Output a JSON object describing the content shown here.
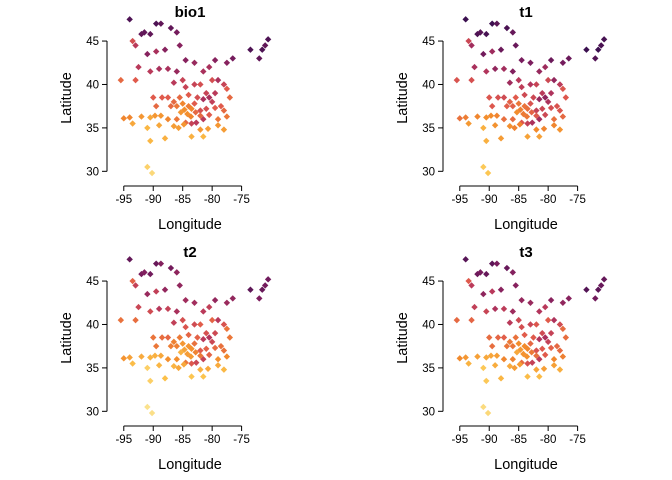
{
  "chart_data": [
    {
      "type": "scatter",
      "title": "bio1",
      "xlabel": "Longitude",
      "ylabel": "Latitude",
      "xlim": [
        -97,
        -69.5
      ],
      "ylim": [
        29,
        48
      ],
      "xticks": [
        -95,
        -90,
        -85,
        -80,
        -75
      ],
      "yticks": [
        30,
        35,
        40,
        45
      ],
      "tick_labels_x": [
        "-95",
        "-90",
        "-85",
        "-80",
        "-75"
      ],
      "tick_labels_y": [
        "30",
        "35",
        "40",
        "45"
      ],
      "marker": "diamond",
      "color_scale": [
        "#3b0f4f",
        "#7b1d5e",
        "#b5365c",
        "#e05a4c",
        "#f28b2c",
        "#fcc24a",
        "#fbe89b"
      ],
      "points": [
        {
          "x": -95.5,
          "y": 40.5,
          "v": 0.55
        },
        {
          "x": -94,
          "y": 47.5,
          "v": 0.05
        },
        {
          "x": -93.5,
          "y": 45,
          "v": 0.45
        },
        {
          "x": -93,
          "y": 44.5,
          "v": 0.35
        },
        {
          "x": -92,
          "y": 45.8,
          "v": 0.1
        },
        {
          "x": -91.5,
          "y": 46,
          "v": 0.1
        },
        {
          "x": -90.5,
          "y": 45.8,
          "v": 0.1
        },
        {
          "x": -89.5,
          "y": 47,
          "v": 0.05
        },
        {
          "x": -88.7,
          "y": 47,
          "v": 0.1
        },
        {
          "x": -87,
          "y": 46.5,
          "v": 0.1
        },
        {
          "x": -86,
          "y": 46,
          "v": 0.15
        },
        {
          "x": -85.5,
          "y": 44.5,
          "v": 0.2
        },
        {
          "x": -91,
          "y": 43.5,
          "v": 0.2
        },
        {
          "x": -89.5,
          "y": 43.8,
          "v": 0.3
        },
        {
          "x": -88,
          "y": 44,
          "v": 0.2
        },
        {
          "x": -92.5,
          "y": 42,
          "v": 0.35
        },
        {
          "x": -90.5,
          "y": 41.5,
          "v": 0.35
        },
        {
          "x": -89,
          "y": 41.8,
          "v": 0.3
        },
        {
          "x": -93,
          "y": 40.5,
          "v": 0.5
        },
        {
          "x": -87.5,
          "y": 41.8,
          "v": 0.3
        },
        {
          "x": -86,
          "y": 41.5,
          "v": 0.25
        },
        {
          "x": -84.5,
          "y": 42.8,
          "v": 0.2
        },
        {
          "x": -83,
          "y": 42.5,
          "v": 0.25
        },
        {
          "x": -81.5,
          "y": 41.5,
          "v": 0.3
        },
        {
          "x": -80.5,
          "y": 42,
          "v": 0.3
        },
        {
          "x": -79.5,
          "y": 42.8,
          "v": 0.2
        },
        {
          "x": -77.5,
          "y": 42.5,
          "v": 0.2
        },
        {
          "x": -76.5,
          "y": 43,
          "v": 0.15
        },
        {
          "x": -73.5,
          "y": 44,
          "v": 0.05
        },
        {
          "x": -71.5,
          "y": 44,
          "v": 0.05
        },
        {
          "x": -70.5,
          "y": 45.2,
          "v": 0.05
        },
        {
          "x": -71,
          "y": 44.5,
          "v": 0.1
        },
        {
          "x": -72,
          "y": 43,
          "v": 0.1
        },
        {
          "x": -86.5,
          "y": 40.2,
          "v": 0.35
        },
        {
          "x": -85,
          "y": 40.5,
          "v": 0.4
        },
        {
          "x": -84.5,
          "y": 39.7,
          "v": 0.4
        },
        {
          "x": -83,
          "y": 40,
          "v": 0.4
        },
        {
          "x": -82,
          "y": 40,
          "v": 0.45
        },
        {
          "x": -80,
          "y": 40.5,
          "v": 0.45
        },
        {
          "x": -79,
          "y": 40.5,
          "v": 0.3
        },
        {
          "x": -78,
          "y": 40,
          "v": 0.4
        },
        {
          "x": -77.5,
          "y": 39.5,
          "v": 0.5
        },
        {
          "x": -77,
          "y": 38.5,
          "v": 0.55
        },
        {
          "x": -79.5,
          "y": 39,
          "v": 0.35
        },
        {
          "x": -80.5,
          "y": 38.5,
          "v": 0.3
        },
        {
          "x": -81.5,
          "y": 38.3,
          "v": 0.3
        },
        {
          "x": -82.5,
          "y": 38.5,
          "v": 0.45
        },
        {
          "x": -84,
          "y": 38.8,
          "v": 0.5
        },
        {
          "x": -85.5,
          "y": 38.5,
          "v": 0.55
        },
        {
          "x": -86.5,
          "y": 38,
          "v": 0.55
        },
        {
          "x": -87.5,
          "y": 38.5,
          "v": 0.5
        },
        {
          "x": -88.5,
          "y": 38.5,
          "v": 0.5
        },
        {
          "x": -90,
          "y": 38.5,
          "v": 0.5
        },
        {
          "x": -89.5,
          "y": 37.5,
          "v": 0.55
        },
        {
          "x": -87,
          "y": 37.5,
          "v": 0.55
        },
        {
          "x": -86,
          "y": 37.5,
          "v": 0.6
        },
        {
          "x": -85,
          "y": 37.8,
          "v": 0.65
        },
        {
          "x": -84,
          "y": 37.5,
          "v": 0.62
        },
        {
          "x": -83.5,
          "y": 37.2,
          "v": 0.65
        },
        {
          "x": -84.7,
          "y": 37.1,
          "v": 0.68
        },
        {
          "x": -85.3,
          "y": 36.8,
          "v": 0.7
        },
        {
          "x": -84.2,
          "y": 36.6,
          "v": 0.68
        },
        {
          "x": -83.6,
          "y": 36.3,
          "v": 0.65
        },
        {
          "x": -82.8,
          "y": 36.8,
          "v": 0.55
        },
        {
          "x": -82,
          "y": 37,
          "v": 0.45
        },
        {
          "x": -81,
          "y": 37.2,
          "v": 0.45
        },
        {
          "x": -80.5,
          "y": 36.5,
          "v": 0.5
        },
        {
          "x": -79.5,
          "y": 37.3,
          "v": 0.5
        },
        {
          "x": -78.5,
          "y": 37.5,
          "v": 0.5
        },
        {
          "x": -78,
          "y": 37,
          "v": 0.55
        },
        {
          "x": -77.5,
          "y": 36.3,
          "v": 0.6
        },
        {
          "x": -79,
          "y": 36,
          "v": 0.6
        },
        {
          "x": -81.5,
          "y": 36,
          "v": 0.35
        },
        {
          "x": -82.7,
          "y": 35.6,
          "v": 0.35
        },
        {
          "x": -83.5,
          "y": 35.5,
          "v": 0.4
        },
        {
          "x": -84.5,
          "y": 35.6,
          "v": 0.55
        },
        {
          "x": -86,
          "y": 36,
          "v": 0.6
        },
        {
          "x": -87.5,
          "y": 36,
          "v": 0.65
        },
        {
          "x": -88.7,
          "y": 36.4,
          "v": 0.7
        },
        {
          "x": -89.7,
          "y": 36.4,
          "v": 0.7
        },
        {
          "x": -90.5,
          "y": 36.2,
          "v": 0.75
        },
        {
          "x": -92,
          "y": 36.3,
          "v": 0.7
        },
        {
          "x": -94,
          "y": 36.2,
          "v": 0.65
        },
        {
          "x": -95,
          "y": 36.1,
          "v": 0.65
        },
        {
          "x": -93.5,
          "y": 35.5,
          "v": 0.75
        },
        {
          "x": -91,
          "y": 35,
          "v": 0.8
        },
        {
          "x": -89,
          "y": 35.3,
          "v": 0.75
        },
        {
          "x": -86.5,
          "y": 35.2,
          "v": 0.72
        },
        {
          "x": -85.7,
          "y": 35,
          "v": 0.72
        },
        {
          "x": -84.8,
          "y": 35.4,
          "v": 0.7
        },
        {
          "x": -82,
          "y": 34.8,
          "v": 0.7
        },
        {
          "x": -80.7,
          "y": 34.9,
          "v": 0.72
        },
        {
          "x": -79,
          "y": 35.3,
          "v": 0.7
        },
        {
          "x": -78,
          "y": 34.8,
          "v": 0.72
        },
        {
          "x": -81.5,
          "y": 34,
          "v": 0.8
        },
        {
          "x": -83.5,
          "y": 34,
          "v": 0.78
        },
        {
          "x": -90.5,
          "y": 33.5,
          "v": 0.8
        },
        {
          "x": -88,
          "y": 33.8,
          "v": 0.78
        },
        {
          "x": -91,
          "y": 30.5,
          "v": 0.9
        },
        {
          "x": -90.2,
          "y": 29.8,
          "v": 0.93
        },
        {
          "x": -82,
          "y": 36.4,
          "v": 0.55
        },
        {
          "x": -83,
          "y": 37.8,
          "v": 0.5
        },
        {
          "x": -80,
          "y": 38,
          "v": 0.38
        },
        {
          "x": -81,
          "y": 39,
          "v": 0.4
        }
      ]
    },
    {
      "type": "scatter",
      "title": "t1",
      "xlabel": "Longitude",
      "ylabel": "Latitude",
      "xlim": [
        -97,
        -69.5
      ],
      "ylim": [
        29,
        48
      ],
      "xticks": [
        -95,
        -90,
        -85,
        -80,
        -75
      ],
      "yticks": [
        30,
        35,
        40,
        45
      ],
      "tick_labels_x": [
        "-95",
        "-90",
        "-85",
        "-80",
        "-75"
      ],
      "tick_labels_y": [
        "30",
        "35",
        "40",
        "45"
      ],
      "marker": "diamond",
      "value_shift": -0.05,
      "color_scale": [
        "#3b0f4f",
        "#7b1d5e",
        "#b5365c",
        "#e05a4c",
        "#f28b2c",
        "#fcc24a",
        "#fbe89b"
      ]
    },
    {
      "type": "scatter",
      "title": "t2",
      "xlabel": "Longitude",
      "ylabel": "Latitude",
      "xlim": [
        -97,
        -69.5
      ],
      "ylim": [
        29,
        48
      ],
      "xticks": [
        -95,
        -90,
        -85,
        -80,
        -75
      ],
      "yticks": [
        30,
        35,
        40,
        45
      ],
      "tick_labels_x": [
        "-95",
        "-90",
        "-85",
        "-80",
        "-75"
      ],
      "tick_labels_y": [
        "30",
        "35",
        "40",
        "45"
      ],
      "marker": "diamond",
      "value_shift": 0.06,
      "color_scale": [
        "#3b0f4f",
        "#7b1d5e",
        "#b5365c",
        "#e05a4c",
        "#f28b2c",
        "#fcc24a",
        "#fbe89b"
      ]
    },
    {
      "type": "scatter",
      "title": "t3",
      "xlabel": "Longitude",
      "ylabel": "Latitude",
      "xlim": [
        -97,
        -69.5
      ],
      "ylim": [
        29,
        48
      ],
      "xticks": [
        -95,
        -90,
        -85,
        -80,
        -75
      ],
      "yticks": [
        30,
        35,
        40,
        45
      ],
      "tick_labels_x": [
        "-95",
        "-90",
        "-85",
        "-80",
        "-75"
      ],
      "tick_labels_y": [
        "30",
        "35",
        "40",
        "45"
      ],
      "marker": "diamond",
      "value_shift": 0.03,
      "color_scale": [
        "#3b0f4f",
        "#7b1d5e",
        "#b5365c",
        "#e05a4c",
        "#f28b2c",
        "#fcc24a",
        "#fbe89b"
      ]
    }
  ]
}
